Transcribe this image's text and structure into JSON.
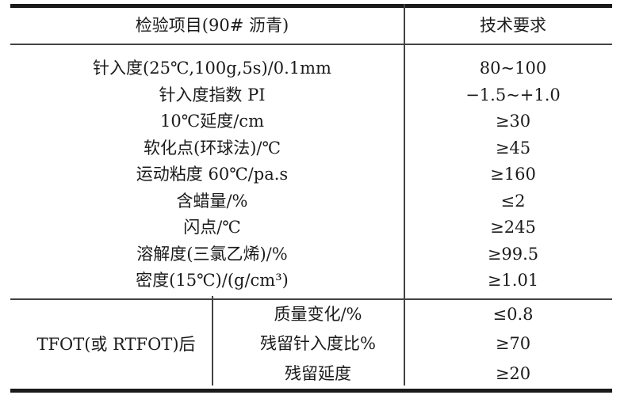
{
  "table": {
    "header": {
      "col1": "检验项目(90# 沥青)",
      "col2": "技术要求"
    },
    "rows": [
      {
        "item": "针入度(25℃,100g,5s)/0.1mm",
        "req": "80~100"
      },
      {
        "item": "针入度指数 PI",
        "req": "−1.5~+1.0"
      },
      {
        "item": "10℃延度/cm",
        "req": "≥30"
      },
      {
        "item": "软化点(环球法)/℃",
        "req": "≥45"
      },
      {
        "item": "运动粘度 60℃/pa.s",
        "req": "≥160"
      },
      {
        "item": "含蜡量/%",
        "req": "≤2"
      },
      {
        "item": "闪点/℃",
        "req": "≥245"
      },
      {
        "item": "溶解度(三氯乙烯)/%",
        "req": "≥99.5"
      },
      {
        "item": "密度(15℃)/(g/cm³)",
        "req": "≥1.01"
      }
    ],
    "tfot_section": {
      "label": "TFOT(或 RTFOT)后",
      "rows": [
        {
          "item": "质量变化/%",
          "req": "≤0.8"
        },
        {
          "item": "残留针入度比%",
          "req": "≥70"
        },
        {
          "item": "残留延度",
          "req": "≥20"
        }
      ]
    },
    "colors": {
      "rule_thick": "#1a1a1a",
      "rule_thin": "#434343",
      "text": "#1b1b1b",
      "background": "#ffffff"
    }
  }
}
